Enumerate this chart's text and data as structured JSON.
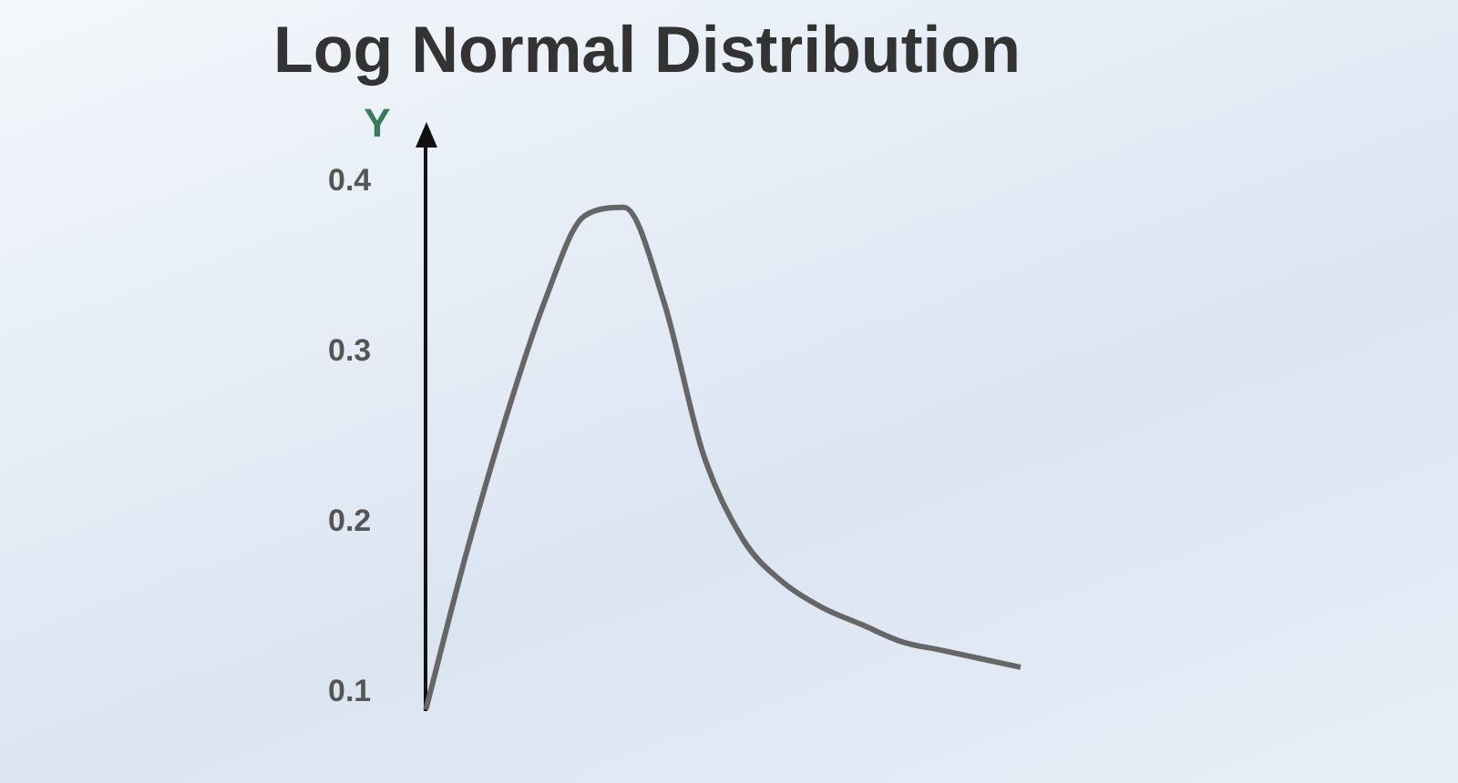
{
  "chart_data": {
    "type": "line",
    "title": "Log Normal Distribution",
    "ylabel": "Y",
    "categories": [
      null,
      null,
      null,
      null,
      null,
      null,
      null,
      null,
      null,
      null,
      null,
      null,
      null,
      null,
      null,
      null
    ],
    "series": [
      {
        "color": "#666666",
        "values": [
          0.09,
          0.18,
          0.26,
          0.33,
          0.38,
          0.385,
          0.33,
          0.24,
          0.19,
          0.165,
          0.15,
          0.14,
          0.13,
          0.125,
          0.12,
          0.115
        ]
      }
    ],
    "ylim": [
      0.09,
      0.42
    ],
    "yticks": [
      0.1,
      0.2,
      0.3,
      0.4
    ],
    "grid": false,
    "legend": false,
    "marker": "none",
    "line_style": "solid",
    "tick_labels": "y"
  }
}
